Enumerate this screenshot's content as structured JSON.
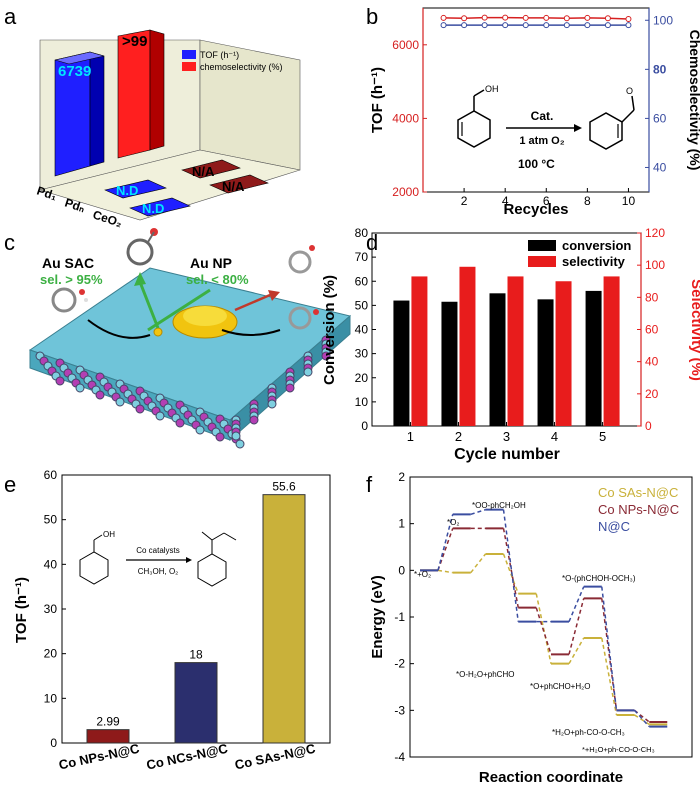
{
  "panel_letters": {
    "a": "a",
    "b": "b",
    "c": "c",
    "d": "d",
    "e": "e",
    "f": "f"
  },
  "colors": {
    "blue": "#1f1fff",
    "red": "#ff1f1f",
    "dark_red": "#8e1a1a",
    "navy": "#2b2f6e",
    "gold": "#c9b13a",
    "black": "#000000",
    "slate_blue": "#3a4da0",
    "wine": "#8a2a35"
  },
  "panel_a": {
    "legend": [
      "TOF (h⁻¹)",
      "chemoselectivity (%)"
    ],
    "categories": [
      "Pd₁",
      "Pdₙ",
      "CeO₂"
    ],
    "bar_labels": {
      "tof_pd1": "6739",
      "sel_pd1": ">99",
      "na1": "N/A",
      "na2": "N/A",
      "nd1": "N.D",
      "nd2": "N.D"
    }
  },
  "panel_b": {
    "xlabel": "Recycles",
    "ylabel_left": "TOF (h⁻¹)",
    "ylabel_right": "Chemoselectivity (%)",
    "x_ticks": [
      "2",
      "4",
      "6",
      "8",
      "10"
    ],
    "y_left_ticks": [
      "2000",
      "4000",
      "6000"
    ],
    "y_right_ticks": [
      "40",
      "60",
      "80",
      "100"
    ],
    "scheme": {
      "cat": "Cat.",
      "cond": "1 atm O₂",
      "temp": "100 °C",
      "oh": "OH",
      "o": "O"
    }
  },
  "panel_c": {
    "au_sac": "Au SAC",
    "sel_sac": "sel. > 95%",
    "au_np": "Au NP",
    "sel_np": "sel. < 80%"
  },
  "panel_d": {
    "xlabel": "Cycle number",
    "ylabel_left": "Conversion (%)",
    "ylabel_right": "Selectivity (%)",
    "legend": [
      "conversion",
      "selectivity"
    ],
    "x_ticks": [
      "1",
      "2",
      "3",
      "4",
      "5"
    ],
    "y_left_ticks": [
      "0",
      "10",
      "20",
      "30",
      "40",
      "50",
      "60",
      "70",
      "80"
    ],
    "y_right_ticks": [
      "0",
      "20",
      "40",
      "60",
      "80",
      "100",
      "120"
    ]
  },
  "panel_e": {
    "ylabel": "TOF (h⁻¹)",
    "y_ticks": [
      "0",
      "10",
      "20",
      "30",
      "40",
      "50",
      "60"
    ],
    "scheme": {
      "oh": "OH",
      "cat": "Co catalysts",
      "cond": "CH₃OH, O₂"
    }
  },
  "panel_f": {
    "xlabel": "Reaction coordinate",
    "ylabel": "Energy (eV)",
    "y_ticks": [
      "2",
      "1",
      "0",
      "-1",
      "-2",
      "-3",
      "-4"
    ],
    "legend": [
      "Co SAs-N@C",
      "Co NPs-N@C",
      "N@C"
    ],
    "annotations": {
      "o2s": "*+O₂",
      "o2": "*O₂",
      "oo": "*OO-phCH₂OH",
      "oph": "*O-(phCHOH-OCH₃)",
      "h2o": "*O-H₂O+phCHO",
      "oph2": "*O+phCHO+H₂O",
      "h2o2": "*H₂O+ph-CO-O-CH₃",
      "h2o3": "*+H₂O+ph-CO-O-CH₃"
    }
  },
  "chart_data": [
    {
      "type": "bar",
      "panel": "a",
      "series": [
        {
          "name": "TOF (h⁻¹)",
          "values": [
            6739,
            null,
            null
          ]
        },
        {
          "name": "chemoselectivity (%)",
          "values": [
            99,
            null,
            null
          ]
        }
      ],
      "categories": [
        "Pd₁",
        "Pdₙ",
        "CeO₂"
      ]
    },
    {
      "type": "line",
      "panel": "b",
      "x": [
        1,
        2,
        3,
        4,
        5,
        6,
        7,
        8,
        9,
        10
      ],
      "series": [
        {
          "name": "TOF",
          "values": [
            6730,
            6720,
            6740,
            6740,
            6730,
            6730,
            6720,
            6730,
            6720,
            6700
          ]
        },
        {
          "name": "Chemoselectivity",
          "values": [
            98,
            98,
            98,
            98,
            98,
            98,
            98,
            98,
            98,
            98
          ]
        }
      ],
      "xlabel": "Recycles",
      "ylim_left": [
        2000,
        7000
      ],
      "ylim_right": [
        30,
        105
      ]
    },
    {
      "type": "bar",
      "panel": "d",
      "categories": [
        "1",
        "2",
        "3",
        "4",
        "5"
      ],
      "series": [
        {
          "name": "conversion",
          "values": [
            52,
            51.5,
            55,
            52.5,
            56
          ]
        },
        {
          "name": "selectivity",
          "values": [
            93,
            99,
            93,
            90,
            93
          ]
        }
      ],
      "xlabel": "Cycle number",
      "ylabel": "Conversion (%)",
      "ylim": [
        0,
        80
      ],
      "ylim_right": [
        0,
        120
      ]
    },
    {
      "type": "bar",
      "panel": "e",
      "categories": [
        "Co NPs-N@C",
        "Co NCs-N@C",
        "Co SAs-N@C"
      ],
      "values": [
        2.99,
        18,
        55.6
      ],
      "ylabel": "TOF (h⁻¹)",
      "ylim": [
        0,
        60
      ]
    },
    {
      "type": "line",
      "panel": "f",
      "xlabel": "Reaction coordinate",
      "ylabel": "Energy (eV)",
      "ylim": [
        -4,
        2
      ],
      "series": [
        {
          "name": "Co SAs-N@C",
          "values": [
            0,
            -0.05,
            0.35,
            -0.5,
            -2.0,
            -1.45,
            -3.1,
            -3.3
          ]
        },
        {
          "name": "Co NPs-N@C",
          "values": [
            0,
            0.9,
            0.9,
            -0.8,
            -1.8,
            -0.6,
            -3.0,
            -3.25
          ]
        },
        {
          "name": "N@C",
          "values": [
            0,
            1.2,
            1.3,
            -1.1,
            -1.1,
            -0.35,
            -3.0,
            -3.35
          ]
        }
      ]
    }
  ]
}
